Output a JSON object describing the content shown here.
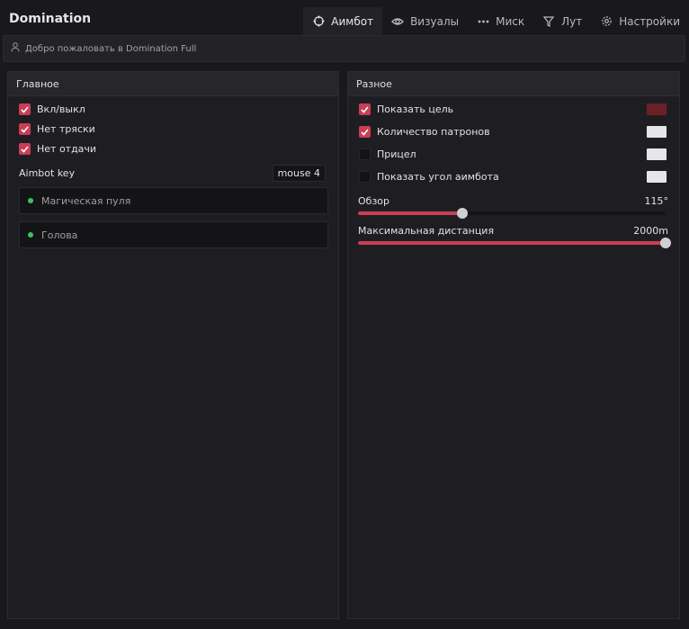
{
  "app": {
    "title": "Domination"
  },
  "tabs": [
    {
      "label": "Аимбот",
      "icon": "crosshair-icon",
      "active": true
    },
    {
      "label": "Визуалы",
      "icon": "eye-icon",
      "active": false
    },
    {
      "label": "Миск",
      "icon": "dots-icon",
      "active": false
    },
    {
      "label": "Лут",
      "icon": "filter-icon",
      "active": false
    },
    {
      "label": "Настройки",
      "icon": "gear-icon",
      "active": false
    }
  ],
  "welcome": {
    "icon": "user-icon",
    "text": "Добро пожаловать в Domination Full"
  },
  "main_panel": {
    "title": "Главное",
    "checkboxes": [
      {
        "label": "Вкл/выкл",
        "checked": true
      },
      {
        "label": "Нет тряски",
        "checked": true
      },
      {
        "label": "Нет отдачи",
        "checked": true
      }
    ],
    "key_label": "Aimbot key",
    "key_value": "mouse 4",
    "dropdowns": [
      {
        "value": "Магическая пуля"
      },
      {
        "value": "Голова"
      }
    ]
  },
  "misc_panel": {
    "title": "Разное",
    "checkboxes": [
      {
        "label": "Показать цель",
        "checked": true,
        "color": "#6b2028"
      },
      {
        "label": "Количество патронов",
        "checked": true,
        "color": "#e6e6e6"
      },
      {
        "label": "Прицел",
        "checked": false,
        "color": "#e6e6e6"
      },
      {
        "label": "Показать угол аимбота",
        "checked": false,
        "color": "#e6e6e6"
      }
    ],
    "sliders": [
      {
        "label": "Обзор",
        "value_text": "115°",
        "fraction": 0.34
      },
      {
        "label": "Максимальная дистанция",
        "value_text": "2000m",
        "fraction": 1.0
      }
    ]
  },
  "colors": {
    "accent": "#c93d55",
    "background": "#19191d",
    "panel": "#1e1e22",
    "status_dot": "#3fbf5f"
  }
}
